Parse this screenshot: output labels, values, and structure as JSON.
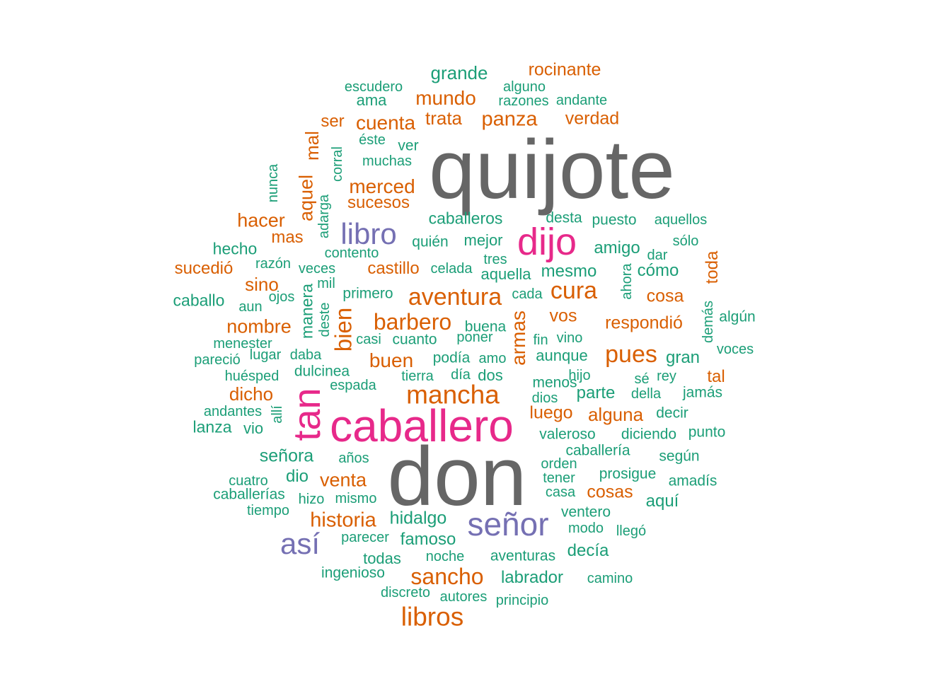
{
  "colors": {
    "c0": "#1b9e77",
    "c1": "#d95f02",
    "c2": "#7570b3",
    "c3": "#e7298a",
    "c4": "#666666"
  },
  "words": [
    {
      "text": "quijote",
      "color": "c4",
      "size": 118
    },
    {
      "text": "don",
      "color": "c4",
      "size": 118
    },
    {
      "text": "caballero",
      "color": "c3",
      "size": 64
    },
    {
      "text": "tan",
      "color": "c3",
      "size": 54
    },
    {
      "text": "dijo",
      "color": "c3",
      "size": 54
    },
    {
      "text": "señor",
      "color": "c2",
      "size": 46
    },
    {
      "text": "libro",
      "color": "c2",
      "size": 42
    },
    {
      "text": "así",
      "color": "c2",
      "size": 42
    },
    {
      "text": "mancha",
      "color": "c1",
      "size": 37
    },
    {
      "text": "libros",
      "color": "c1",
      "size": 37
    },
    {
      "text": "aventura",
      "color": "c1",
      "size": 34
    },
    {
      "text": "cura",
      "color": "c1",
      "size": 34
    },
    {
      "text": "pues",
      "color": "c1",
      "size": 34
    },
    {
      "text": "bien",
      "color": "c1",
      "size": 33
    },
    {
      "text": "barbero",
      "color": "c1",
      "size": 32
    },
    {
      "text": "sancho",
      "color": "c1",
      "size": 32
    },
    {
      "text": "historia",
      "color": "c1",
      "size": 29
    },
    {
      "text": "panza",
      "color": "c1",
      "size": 29
    },
    {
      "text": "mundo",
      "color": "c1",
      "size": 28
    },
    {
      "text": "cuenta",
      "color": "c1",
      "size": 28
    },
    {
      "text": "merced",
      "color": "c1",
      "size": 28
    },
    {
      "text": "buen",
      "color": "c1",
      "size": 28
    },
    {
      "text": "armas",
      "color": "c1",
      "size": 28
    },
    {
      "text": "nombre",
      "color": "c1",
      "size": 27
    },
    {
      "text": "hacer",
      "color": "c1",
      "size": 27
    },
    {
      "text": "venta",
      "color": "c1",
      "size": 27
    },
    {
      "text": "aquel",
      "color": "c1",
      "size": 27
    },
    {
      "text": "dicho",
      "color": "c1",
      "size": 26
    },
    {
      "text": "sino",
      "color": "c1",
      "size": 26
    },
    {
      "text": "trata",
      "color": "c1",
      "size": 26
    },
    {
      "text": "mal",
      "color": "c1",
      "size": 26
    },
    {
      "text": "alguna",
      "color": "c1",
      "size": 26
    },
    {
      "text": "luego",
      "color": "c1",
      "size": 25
    },
    {
      "text": "cosas",
      "color": "c1",
      "size": 25
    },
    {
      "text": "cosa",
      "color": "c1",
      "size": 25
    },
    {
      "text": "verdad",
      "color": "c1",
      "size": 25
    },
    {
      "text": "rocinante",
      "color": "c1",
      "size": 25
    },
    {
      "text": "respondió",
      "color": "c1",
      "size": 25
    },
    {
      "text": "vos",
      "color": "c1",
      "size": 25
    },
    {
      "text": "mas",
      "color": "c1",
      "size": 24
    },
    {
      "text": "castillo",
      "color": "c1",
      "size": 24
    },
    {
      "text": "sucedió",
      "color": "c1",
      "size": 24
    },
    {
      "text": "ser",
      "color": "c1",
      "size": 24
    },
    {
      "text": "tal",
      "color": "c1",
      "size": 24
    },
    {
      "text": "toda",
      "color": "c1",
      "size": 24
    },
    {
      "text": "sucesos",
      "color": "c1",
      "size": 24
    },
    {
      "text": "grande",
      "color": "c0",
      "size": 26
    },
    {
      "text": "hidalgo",
      "color": "c0",
      "size": 25
    },
    {
      "text": "señora",
      "color": "c0",
      "size": 25
    },
    {
      "text": "famoso",
      "color": "c0",
      "size": 24
    },
    {
      "text": "labrador",
      "color": "c0",
      "size": 24
    },
    {
      "text": "decía",
      "color": "c0",
      "size": 24
    },
    {
      "text": "aquí",
      "color": "c0",
      "size": 24
    },
    {
      "text": "parte",
      "color": "c0",
      "size": 24
    },
    {
      "text": "gran",
      "color": "c0",
      "size": 24
    },
    {
      "text": "cómo",
      "color": "c0",
      "size": 24
    },
    {
      "text": "mesmo",
      "color": "c0",
      "size": 24
    },
    {
      "text": "amigo",
      "color": "c0",
      "size": 24
    },
    {
      "text": "dio",
      "color": "c0",
      "size": 24
    },
    {
      "text": "caballeros",
      "color": "c0",
      "size": 23
    },
    {
      "text": "hecho",
      "color": "c0",
      "size": 23
    },
    {
      "text": "caballo",
      "color": "c0",
      "size": 23
    },
    {
      "text": "lanza",
      "color": "c0",
      "size": 23
    },
    {
      "text": "manera",
      "color": "c0",
      "size": 23
    },
    {
      "text": "mejor",
      "color": "c0",
      "size": 22
    },
    {
      "text": "ama",
      "color": "c0",
      "size": 22
    },
    {
      "text": "vio",
      "color": "c0",
      "size": 22
    },
    {
      "text": "todas",
      "color": "c0",
      "size": 22
    },
    {
      "text": "aquella",
      "color": "c0",
      "size": 22
    },
    {
      "text": "aunque",
      "color": "c0",
      "size": 22
    },
    {
      "text": "dos",
      "color": "c0",
      "size": 22
    },
    {
      "text": "primero",
      "color": "c0",
      "size": 21
    },
    {
      "text": "ver",
      "color": "c0",
      "size": 21
    },
    {
      "text": "dulcinea",
      "color": "c0",
      "size": 21
    },
    {
      "text": "cuanto",
      "color": "c0",
      "size": 21
    },
    {
      "text": "podía",
      "color": "c0",
      "size": 21
    },
    {
      "text": "puesto",
      "color": "c0",
      "size": 21
    },
    {
      "text": "quién",
      "color": "c0",
      "size": 21
    },
    {
      "text": "aventuras",
      "color": "c0",
      "size": 21
    },
    {
      "text": "ingenioso",
      "color": "c0",
      "size": 21
    },
    {
      "text": "menos",
      "color": "c0",
      "size": 21
    },
    {
      "text": "jamás",
      "color": "c0",
      "size": 21
    },
    {
      "text": "buena",
      "color": "c0",
      "size": 21
    },
    {
      "text": "decir",
      "color": "c0",
      "size": 21
    },
    {
      "text": "punto",
      "color": "c0",
      "size": 21
    },
    {
      "text": "ventero",
      "color": "c0",
      "size": 21
    },
    {
      "text": "prosigue",
      "color": "c0",
      "size": 21
    },
    {
      "text": "diciendo",
      "color": "c0",
      "size": 21
    },
    {
      "text": "valeroso",
      "color": "c0",
      "size": 21
    },
    {
      "text": "amadís",
      "color": "c0",
      "size": 21
    },
    {
      "text": "algún",
      "color": "c0",
      "size": 21
    },
    {
      "text": "según",
      "color": "c0",
      "size": 21
    },
    {
      "text": "caballería",
      "color": "c0",
      "size": 21
    },
    {
      "text": "caballerías",
      "color": "c0",
      "size": 21
    },
    {
      "text": "desta",
      "color": "c0",
      "size": 21
    },
    {
      "text": "aquellos",
      "color": "c0",
      "size": 20
    },
    {
      "text": "razones",
      "color": "c0",
      "size": 20
    },
    {
      "text": "escudero",
      "color": "c0",
      "size": 20
    },
    {
      "text": "menester",
      "color": "c0",
      "size": 20
    },
    {
      "text": "pareció",
      "color": "c0",
      "size": 20
    },
    {
      "text": "huésped",
      "color": "c0",
      "size": 20
    },
    {
      "text": "andantes",
      "color": "c0",
      "size": 20
    },
    {
      "text": "noche",
      "color": "c0",
      "size": 20
    },
    {
      "text": "parecer",
      "color": "c0",
      "size": 20
    },
    {
      "text": "mismo",
      "color": "c0",
      "size": 20
    },
    {
      "text": "hizo",
      "color": "c0",
      "size": 20
    },
    {
      "text": "años",
      "color": "c0",
      "size": 20
    },
    {
      "text": "cuatro",
      "color": "c0",
      "size": 20
    },
    {
      "text": "tiempo",
      "color": "c0",
      "size": 20
    },
    {
      "text": "autores",
      "color": "c0",
      "size": 20
    },
    {
      "text": "discreto",
      "color": "c0",
      "size": 20
    },
    {
      "text": "principio",
      "color": "c0",
      "size": 20
    },
    {
      "text": "camino",
      "color": "c0",
      "size": 20
    },
    {
      "text": "llegó",
      "color": "c0",
      "size": 20
    },
    {
      "text": "modo",
      "color": "c0",
      "size": 20
    },
    {
      "text": "casa",
      "color": "c0",
      "size": 20
    },
    {
      "text": "tener",
      "color": "c0",
      "size": 20
    },
    {
      "text": "orden",
      "color": "c0",
      "size": 20
    },
    {
      "text": "dios",
      "color": "c0",
      "size": 20
    },
    {
      "text": "hijo",
      "color": "c0",
      "size": 20
    },
    {
      "text": "sé",
      "color": "c0",
      "size": 20
    },
    {
      "text": "rey",
      "color": "c0",
      "size": 20
    },
    {
      "text": "della",
      "color": "c0",
      "size": 20
    },
    {
      "text": "fin",
      "color": "c0",
      "size": 20
    },
    {
      "text": "vino",
      "color": "c0",
      "size": 20
    },
    {
      "text": "cada",
      "color": "c0",
      "size": 20
    },
    {
      "text": "celada",
      "color": "c0",
      "size": 20
    },
    {
      "text": "tres",
      "color": "c0",
      "size": 20
    },
    {
      "text": "dar",
      "color": "c0",
      "size": 20
    },
    {
      "text": "sólo",
      "color": "c0",
      "size": 20
    },
    {
      "text": "voces",
      "color": "c0",
      "size": 20
    },
    {
      "text": "amo",
      "color": "c0",
      "size": 20
    },
    {
      "text": "día",
      "color": "c0",
      "size": 20
    },
    {
      "text": "tierra",
      "color": "c0",
      "size": 20
    },
    {
      "text": "poner",
      "color": "c0",
      "size": 20
    },
    {
      "text": "casi",
      "color": "c0",
      "size": 20
    },
    {
      "text": "espada",
      "color": "c0",
      "size": 20
    },
    {
      "text": "daba",
      "color": "c0",
      "size": 20
    },
    {
      "text": "lugar",
      "color": "c0",
      "size": 20
    },
    {
      "text": "aun",
      "color": "c0",
      "size": 20
    },
    {
      "text": "ojos",
      "color": "c0",
      "size": 20
    },
    {
      "text": "mil",
      "color": "c0",
      "size": 20
    },
    {
      "text": "veces",
      "color": "c0",
      "size": 20
    },
    {
      "text": "razón",
      "color": "c0",
      "size": 20
    },
    {
      "text": "contento",
      "color": "c0",
      "size": 20
    },
    {
      "text": "muchas",
      "color": "c0",
      "size": 20
    },
    {
      "text": "éste",
      "color": "c0",
      "size": 20
    },
    {
      "text": "alguno",
      "color": "c0",
      "size": 20
    },
    {
      "text": "andante",
      "color": "c0",
      "size": 20
    },
    {
      "text": "nunca",
      "color": "c0",
      "size": 20
    },
    {
      "text": "corral",
      "color": "c0",
      "size": 20
    },
    {
      "text": "adarga",
      "color": "c0",
      "size": 20
    },
    {
      "text": "deste",
      "color": "c0",
      "size": 20
    },
    {
      "text": "allí",
      "color": "c0",
      "size": 20
    },
    {
      "text": "ahora",
      "color": "c0",
      "size": 20
    },
    {
      "text": "demás",
      "color": "c0",
      "size": 20
    }
  ]
}
